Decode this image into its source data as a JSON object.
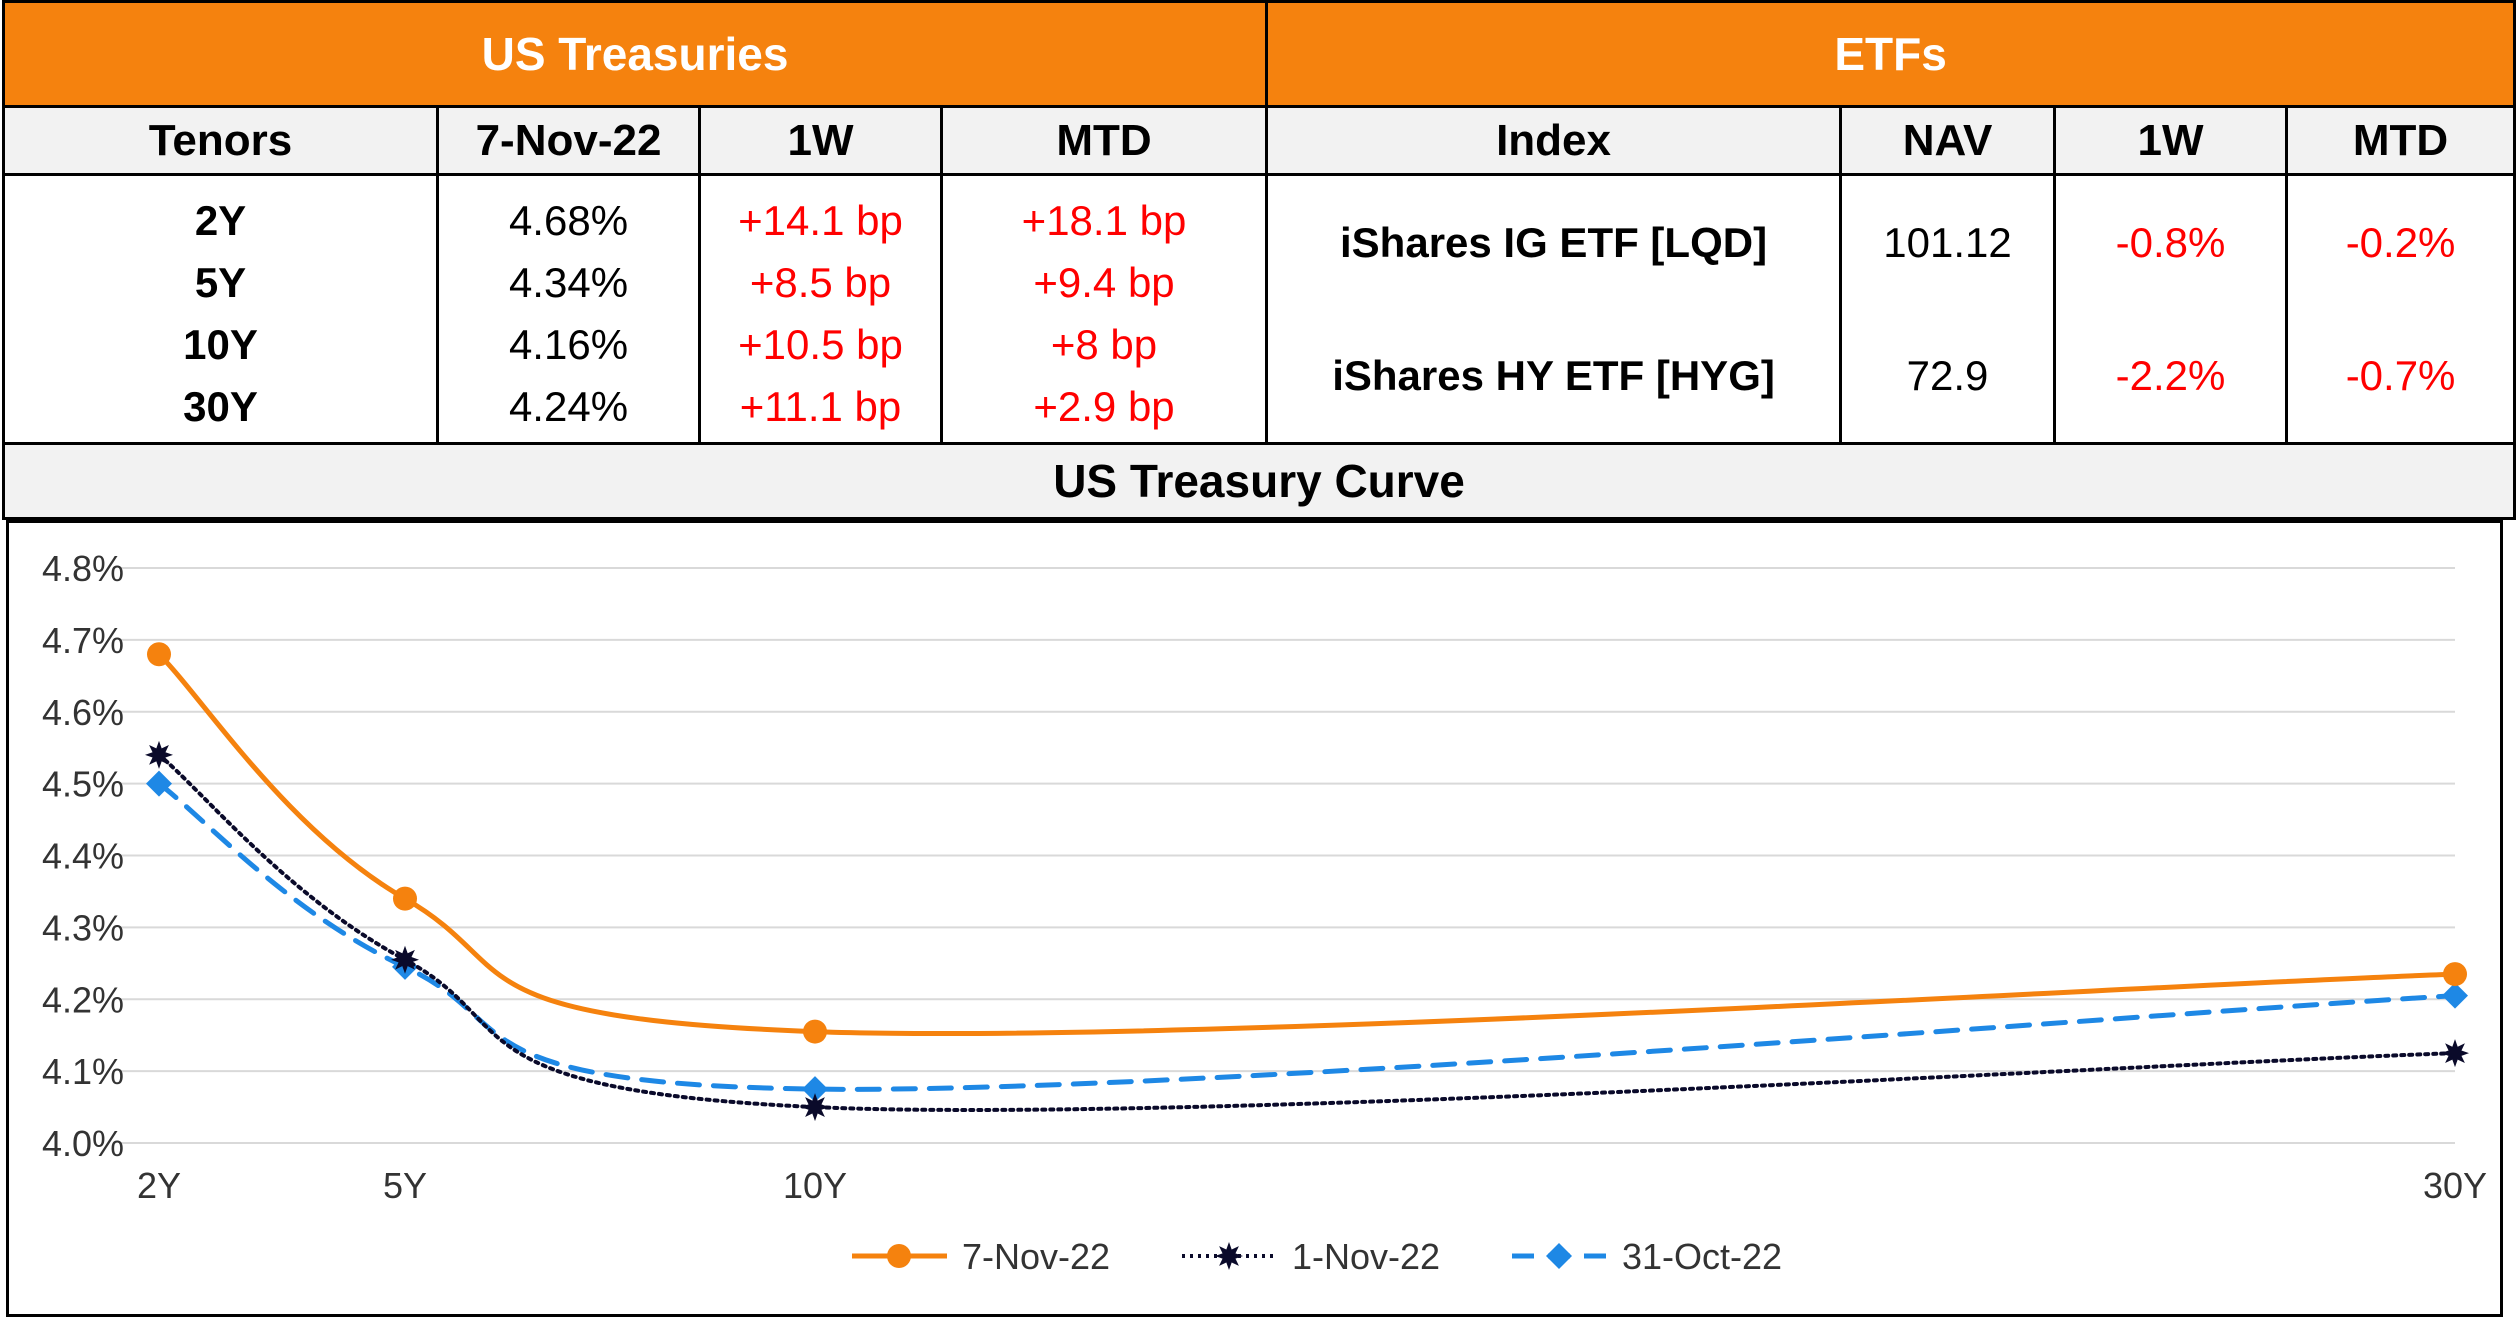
{
  "treasuries": {
    "title": "US Treasuries",
    "headers": [
      "Tenors",
      "7-Nov-22",
      "1W",
      "MTD"
    ],
    "tenors": [
      "2Y",
      "5Y",
      "10Y",
      "30Y"
    ],
    "yields": [
      "4.68%",
      "4.34%",
      "4.16%",
      "4.24%"
    ],
    "w1": [
      "+14.1 bp",
      "+8.5 bp",
      "+10.5 bp",
      "+11.1 bp"
    ],
    "mtd": [
      "+18.1 bp",
      "+9.4 bp",
      "+8 bp",
      "+2.9 bp"
    ]
  },
  "etfs": {
    "title": "ETFs",
    "headers": [
      "Index",
      "NAV",
      "1W",
      "MTD"
    ],
    "names": [
      "iShares IG ETF [LQD]",
      "iShares HY ETF [HYG]"
    ],
    "nav": [
      "101.12",
      "72.9"
    ],
    "w1": [
      "-0.8%",
      "-2.2%"
    ],
    "mtd": [
      "-0.2%",
      "-0.7%"
    ]
  },
  "curve_title": "US Treasury Curve",
  "colors": {
    "header": "#F5820E",
    "negative": "#FF0000",
    "positive": "#FF0000",
    "series1": "#F5820E",
    "series2": "#0A0A2A",
    "series3": "#1E88E5"
  },
  "chart_data": {
    "type": "line",
    "title": "US Treasury Curve",
    "xlabel": "",
    "ylabel": "",
    "x": [
      2,
      5,
      10,
      30
    ],
    "categories": [
      "2Y",
      "5Y",
      "10Y",
      "30Y"
    ],
    "ylim": [
      4.0,
      4.8
    ],
    "yticks": [
      4.0,
      4.1,
      4.2,
      4.3,
      4.4,
      4.5,
      4.6,
      4.7,
      4.8
    ],
    "ytick_labels": [
      "4.0%",
      "4.1%",
      "4.2%",
      "4.3%",
      "4.4%",
      "4.5%",
      "4.6%",
      "4.7%",
      "4.8%"
    ],
    "grid": true,
    "legend_position": "bottom-center",
    "series": [
      {
        "name": "7-Nov-22",
        "values": [
          4.68,
          4.34,
          4.155,
          4.235
        ],
        "style": "solid",
        "marker": "circle"
      },
      {
        "name": "1-Nov-22",
        "values": [
          4.54,
          4.255,
          4.05,
          4.125
        ],
        "style": "dotted",
        "marker": "star"
      },
      {
        "name": "31-Oct-22",
        "values": [
          4.5,
          4.245,
          4.075,
          4.205
        ],
        "style": "dashed",
        "marker": "diamond"
      }
    ]
  }
}
